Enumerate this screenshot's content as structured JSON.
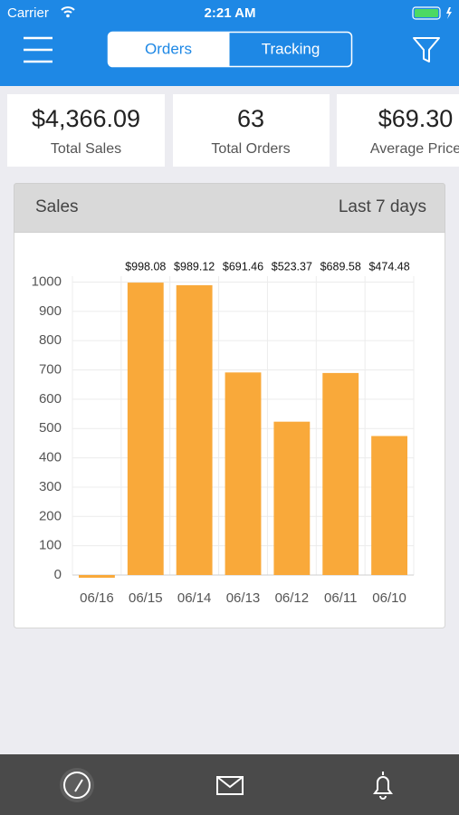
{
  "status_bar": {
    "carrier": "Carrier",
    "time": "2:21 AM"
  },
  "tabs": [
    "Orders",
    "Tracking"
  ],
  "stats": [
    {
      "value": "$4,366.09",
      "label": "Total Sales"
    },
    {
      "value": "63",
      "label": "Total Orders"
    },
    {
      "value": "$69.30",
      "label": "Average Price"
    }
  ],
  "panel": {
    "title": "Sales",
    "period": "Last 7 days"
  },
  "chart_data": {
    "type": "bar",
    "categories": [
      "06/16",
      "06/15",
      "06/14",
      "06/13",
      "06/12",
      "06/11",
      "06/10"
    ],
    "values": [
      0,
      998.08,
      989.12,
      691.46,
      523.37,
      689.58,
      474.48
    ],
    "value_labels": [
      null,
      "$998.08",
      "$989.12",
      "$691.46",
      "$523.37",
      "$689.58",
      "$474.48"
    ],
    "color": "#f9a93a",
    "ylim": [
      0,
      1020
    ],
    "yticks": [
      0,
      100,
      200,
      300,
      400,
      500,
      600,
      700,
      800,
      900,
      1000
    ],
    "grid": true
  }
}
